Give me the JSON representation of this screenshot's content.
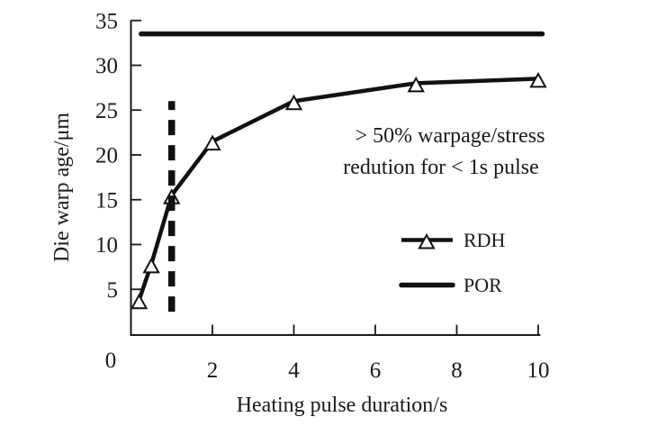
{
  "chart_data": {
    "type": "line",
    "title": "",
    "xlabel": "Heating pulse duration/s",
    "ylabel": "Die warp age/μm",
    "xlim": [
      0,
      10.05
    ],
    "ylim": [
      0,
      35
    ],
    "x_ticks": [
      2,
      4,
      6,
      8,
      10
    ],
    "y_ticks": [
      5,
      10,
      15,
      20,
      25,
      30,
      35
    ],
    "origin_label": "0",
    "grid": false,
    "series": [
      {
        "name": "RDH",
        "marker": "triangle-open",
        "x": [
          0.2,
          0.5,
          1,
          2,
          4,
          7,
          10
        ],
        "y": [
          3.8,
          7.8,
          15.5,
          21.5,
          26,
          28,
          28.5
        ]
      },
      {
        "name": "POR",
        "marker": "none",
        "x": [
          0.25,
          10.1
        ],
        "y": [
          33.5,
          33.5
        ]
      }
    ],
    "reference_line": {
      "style": "dashed-vertical",
      "x": 1,
      "y_from": 2.5,
      "y_to": 26
    },
    "annotation": {
      "line1": "> 50% warpage/stress",
      "line2": "redution for < 1s pulse"
    },
    "legend": {
      "position": "right-middle",
      "entries": [
        "RDH",
        "POR"
      ]
    }
  },
  "colors": {
    "line": "#111111",
    "text": "#1a1a1a",
    "background": "#ffffff"
  }
}
